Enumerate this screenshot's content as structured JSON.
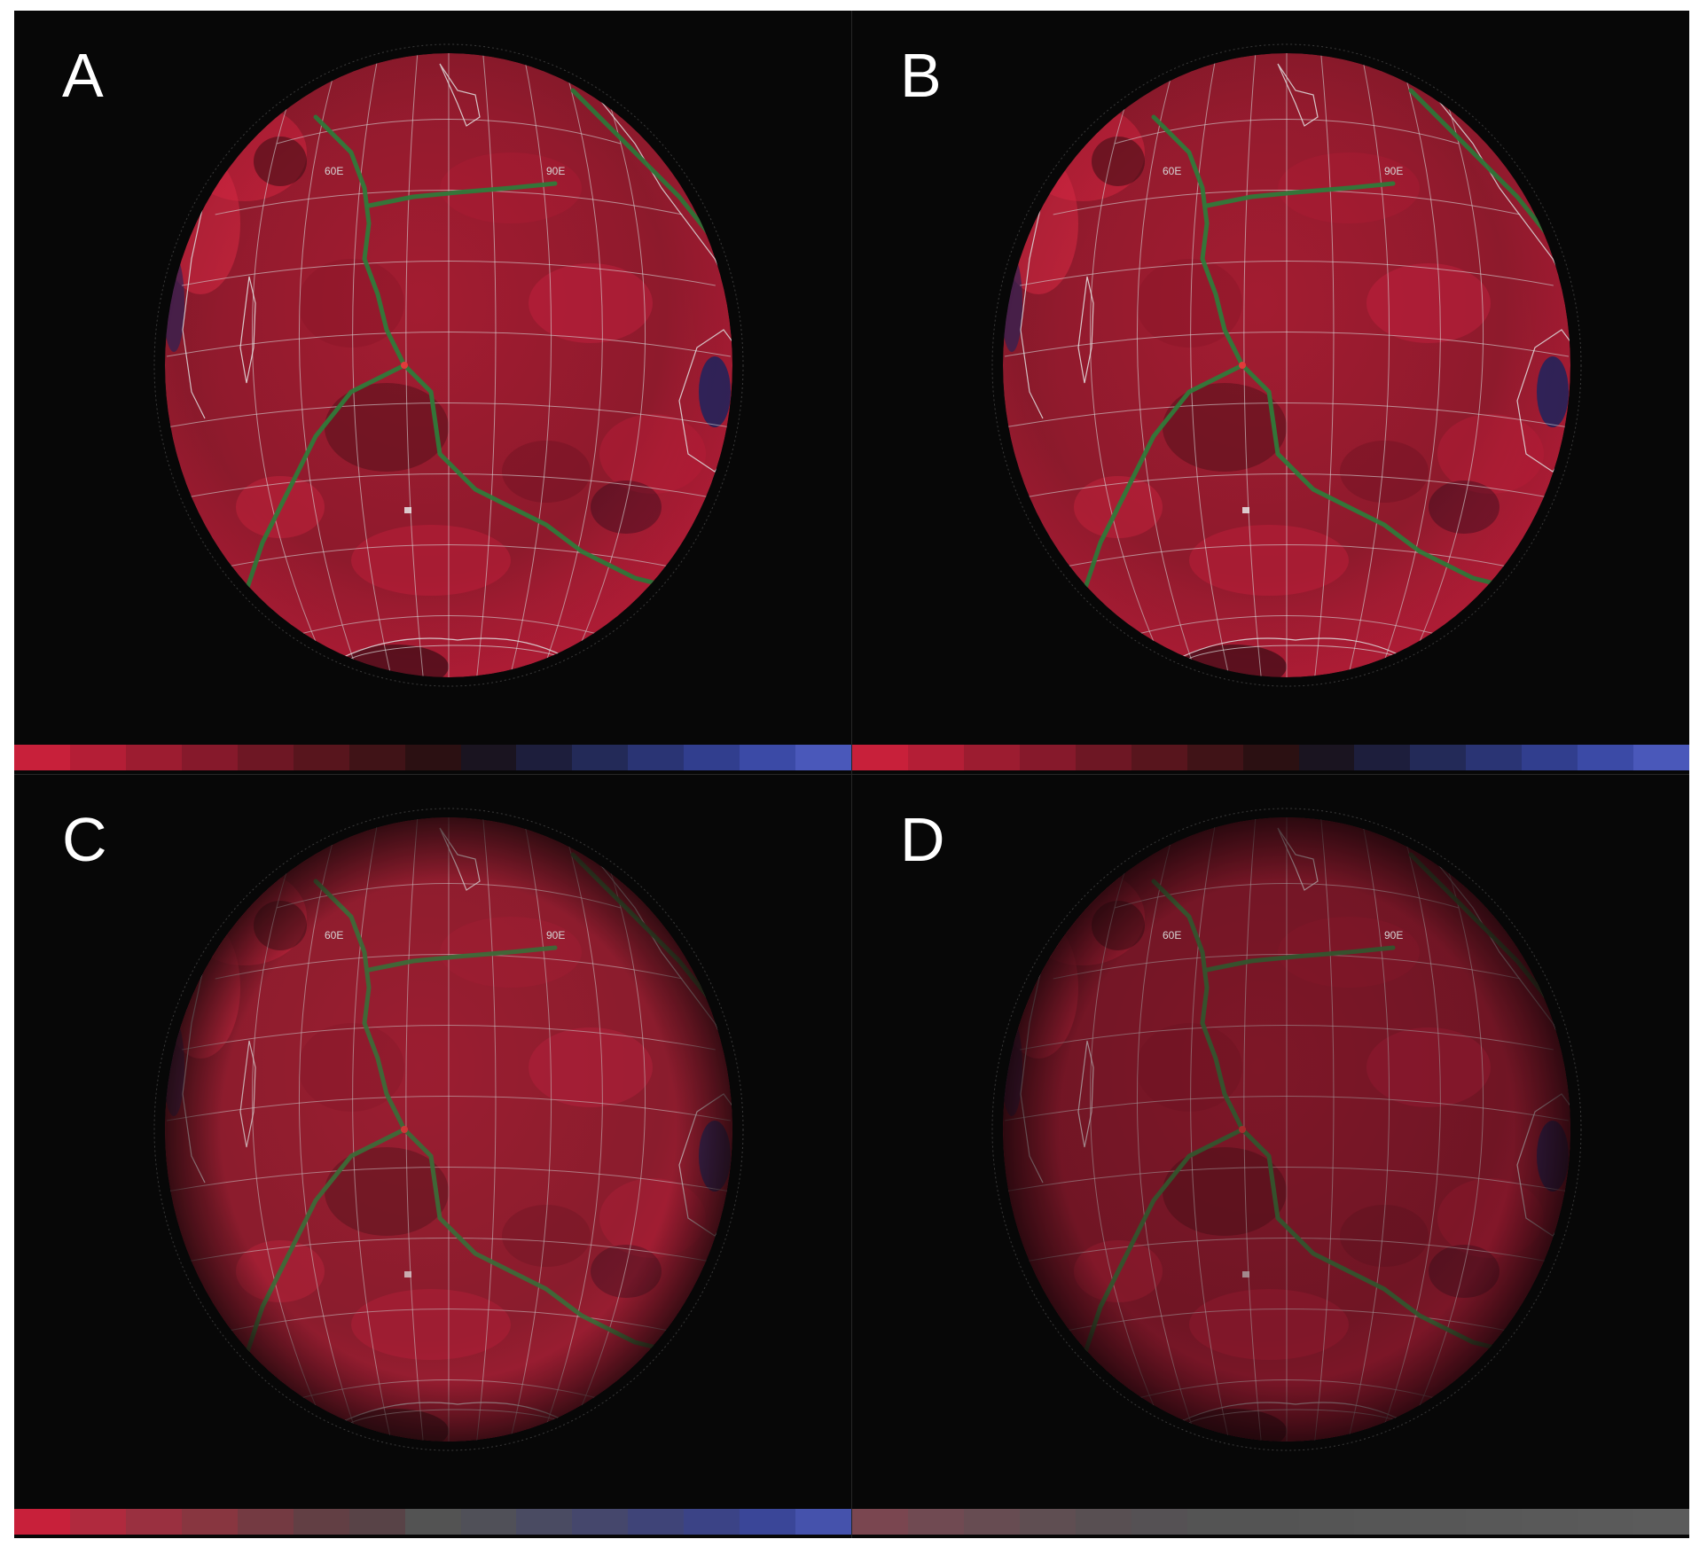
{
  "figure": {
    "panels": [
      {
        "label": "A",
        "globe_labels": [
          "60E",
          "90E"
        ],
        "tint": "none",
        "colorbar": [
          "#c8203a",
          "#b41e36",
          "#9c1c30",
          "#86192b",
          "#6e1724",
          "#58151d",
          "#401317",
          "#2b1012",
          "#1a1420",
          "#1d1e3c",
          "#232a58",
          "#2a3474",
          "#313e8e",
          "#3b4aa6",
          "#4a58ba"
        ]
      },
      {
        "label": "B",
        "globe_labels": [
          "60E",
          "90E"
        ],
        "tint": "none",
        "colorbar": [
          "#c8203a",
          "#b41e36",
          "#9c1c30",
          "#86192b",
          "#6e1724",
          "#58151d",
          "#401317",
          "#2b1012",
          "#1a1420",
          "#1d1e3c",
          "#232a58",
          "#2a3474",
          "#313e8e",
          "#3b4aa6",
          "#4a58ba"
        ]
      },
      {
        "label": "C",
        "globe_labels": [
          "60E",
          "90E"
        ],
        "tint": "faded",
        "colorbar": [
          "#c8203a",
          "#b02a3e",
          "#9a3040",
          "#883640",
          "#743a42",
          "#623f44",
          "#584347",
          "#535353",
          "#505058",
          "#4a4b62",
          "#45476c",
          "#3f4478",
          "#3b4386",
          "#3a4698",
          "#4552ac"
        ]
      },
      {
        "label": "D",
        "globe_labels": [
          "60E",
          "90E"
        ],
        "tint": "dark",
        "colorbar": [
          "#7a4650",
          "#704a52",
          "#674c52",
          "#5f4e52",
          "#584f52",
          "#555154",
          "#545454",
          "#545454",
          "#555555",
          "#565656",
          "#575757",
          "#585858",
          "#595959",
          "#5a5a5a",
          "#5b5b5b"
        ]
      }
    ]
  }
}
